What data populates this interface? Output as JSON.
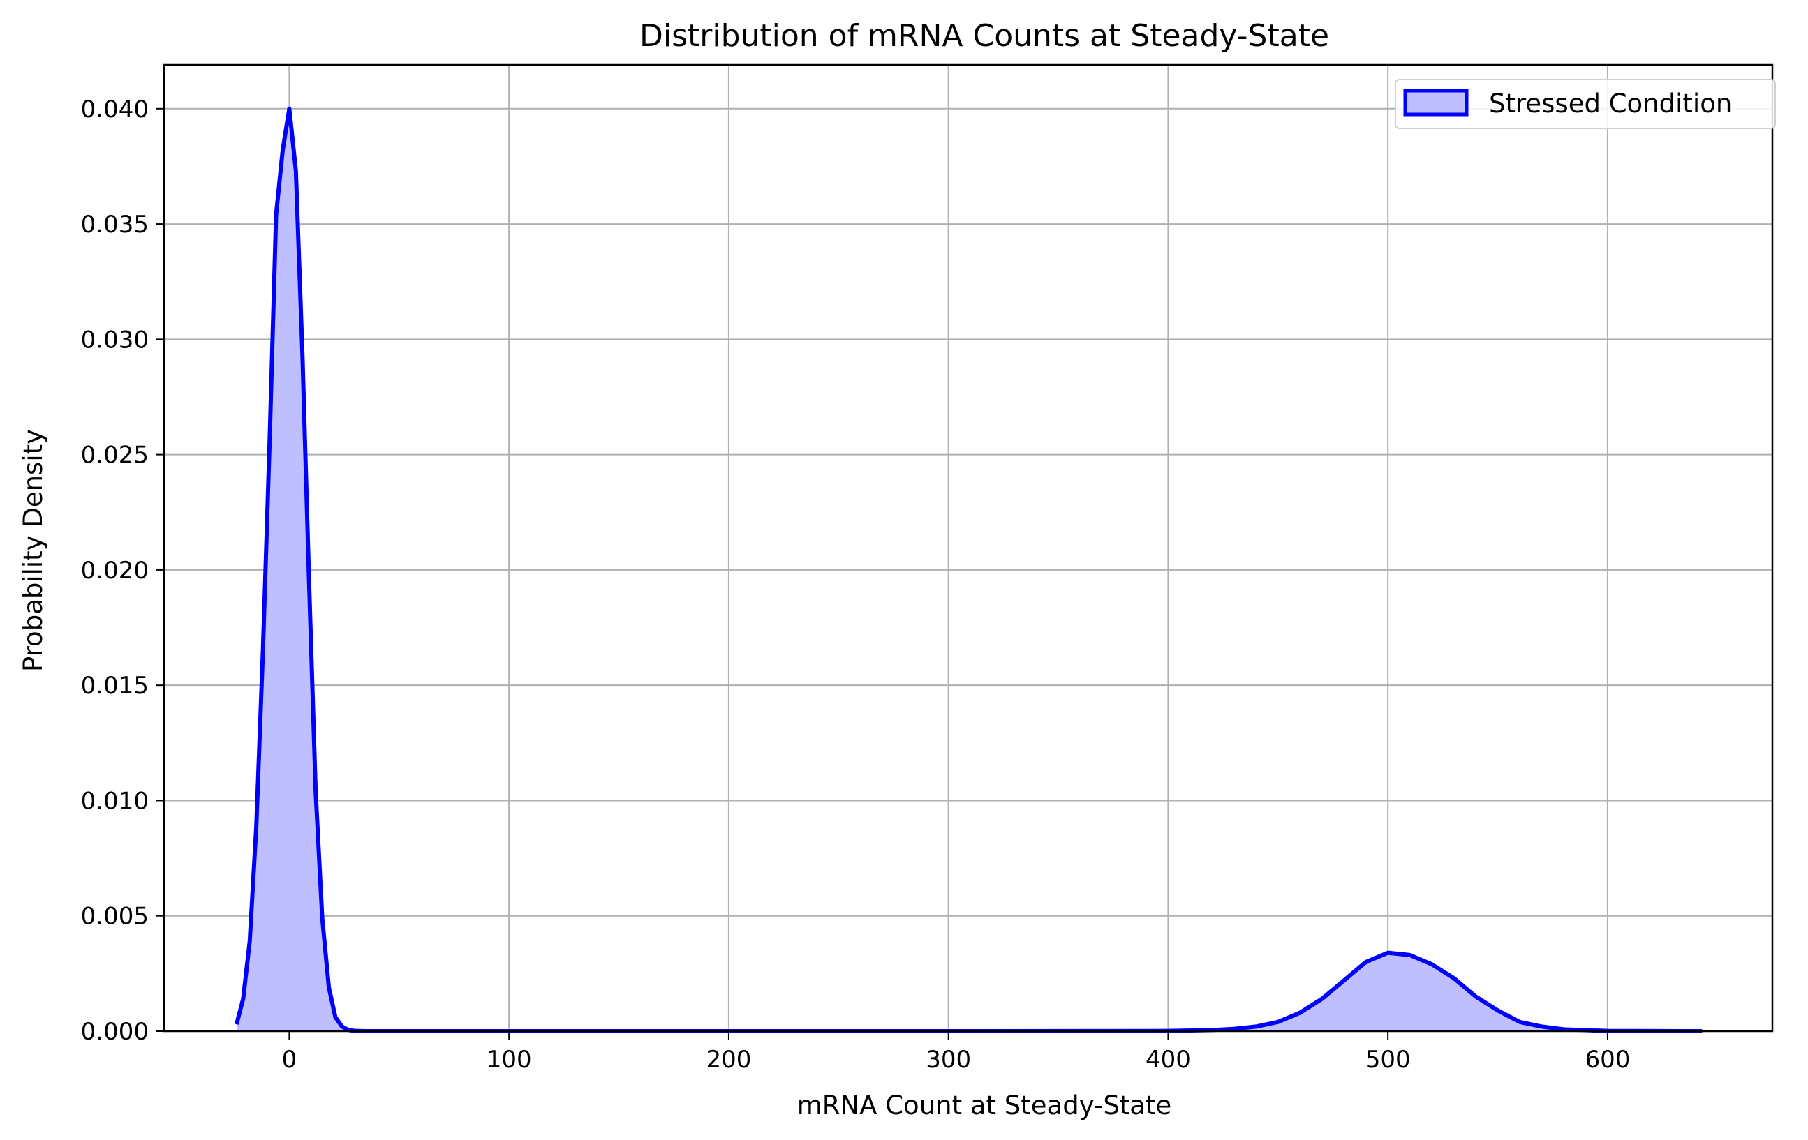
{
  "chart_data": {
    "type": "area",
    "title": "Distribution of mRNA Counts at Steady-State",
    "xlabel": "mRNA Count at Steady-State",
    "ylabel": "Probability Density",
    "xlim": [
      -57,
      675
    ],
    "ylim": [
      0,
      0.0419
    ],
    "x_ticks": [
      0,
      100,
      200,
      300,
      400,
      500,
      600
    ],
    "x_tick_labels": [
      "0",
      "100",
      "200",
      "300",
      "400",
      "500",
      "600"
    ],
    "y_ticks": [
      0,
      0.005,
      0.01,
      0.015,
      0.02,
      0.025,
      0.03,
      0.035,
      0.04
    ],
    "y_tick_labels": [
      "0.000",
      "0.005",
      "0.010",
      "0.015",
      "0.020",
      "0.025",
      "0.030",
      "0.035",
      "0.040"
    ],
    "grid": true,
    "legend": {
      "placement": "top-right",
      "entries": [
        "Stressed Condition"
      ]
    },
    "series": [
      {
        "name": "Stressed Condition",
        "color": "#0000ff",
        "fill": "#bfbfff",
        "x": [
          -24,
          -21,
          -18,
          -15,
          -12,
          -9,
          -6,
          -3,
          0,
          3,
          6,
          9,
          12,
          15,
          18,
          21,
          24,
          27,
          30,
          35,
          40,
          60,
          100,
          200,
          300,
          400,
          420,
          430,
          440,
          450,
          460,
          470,
          480,
          490,
          500,
          510,
          520,
          530,
          540,
          550,
          560,
          570,
          580,
          600,
          643
        ],
        "y": [
          0.0003,
          0.0014,
          0.0039,
          0.0089,
          0.0165,
          0.0254,
          0.0354,
          0.0382,
          0.04,
          0.0373,
          0.0293,
          0.0195,
          0.0104,
          0.0049,
          0.0019,
          0.0006,
          0.0002,
          5e-05,
          1e-05,
          0,
          0,
          0,
          0,
          0,
          0,
          1e-05,
          5e-05,
          0.0001,
          0.0002,
          0.0004,
          0.0008,
          0.0014,
          0.0022,
          0.003,
          0.0034,
          0.0033,
          0.0029,
          0.0023,
          0.0015,
          0.0009,
          0.0004,
          0.0002,
          8e-05,
          1e-05,
          0
        ]
      }
    ]
  }
}
